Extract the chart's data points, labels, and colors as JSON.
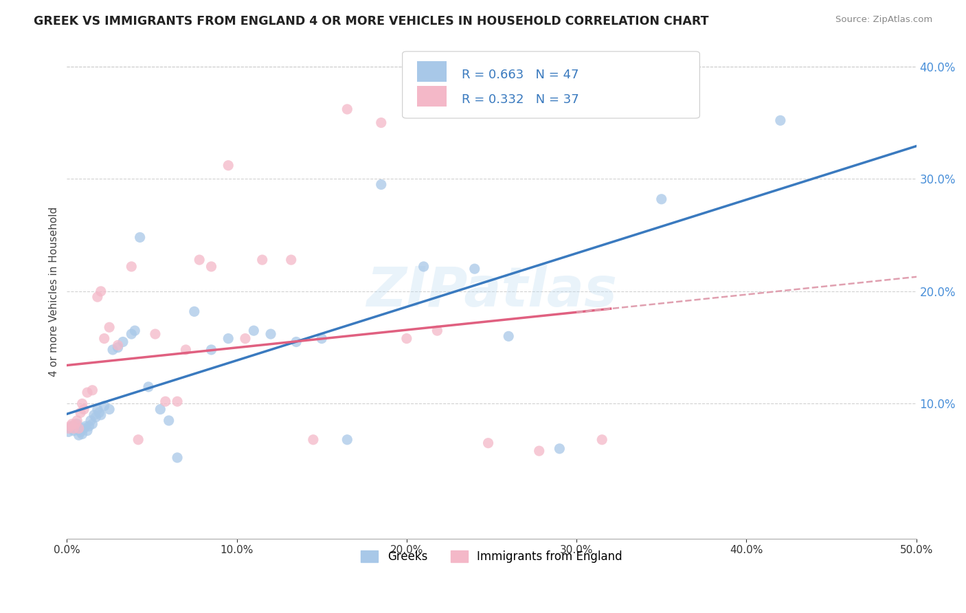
{
  "title": "GREEK VS IMMIGRANTS FROM ENGLAND 4 OR MORE VEHICLES IN HOUSEHOLD CORRELATION CHART",
  "source": "Source: ZipAtlas.com",
  "ylabel": "4 or more Vehicles in Household",
  "xlim": [
    0.0,
    0.5
  ],
  "ylim": [
    -0.02,
    0.42
  ],
  "xtick_vals": [
    0.0,
    0.1,
    0.2,
    0.3,
    0.4,
    0.5
  ],
  "ytick_vals": [
    0.1,
    0.2,
    0.3,
    0.4
  ],
  "blue_R": 0.663,
  "blue_N": 47,
  "pink_R": 0.332,
  "pink_N": 37,
  "blue_color": "#a8c8e8",
  "pink_color": "#f4b8c8",
  "blue_line_color": "#3a7abf",
  "pink_line_color": "#e06080",
  "pink_dash_color": "#e0a0b0",
  "watermark": "ZIPatlas",
  "legend_label_blue": "Greeks",
  "legend_label_pink": "Immigrants from England",
  "blue_x": [
    0.001,
    0.002,
    0.003,
    0.004,
    0.005,
    0.006,
    0.007,
    0.008,
    0.009,
    0.01,
    0.011,
    0.012,
    0.013,
    0.014,
    0.015,
    0.016,
    0.017,
    0.018,
    0.019,
    0.02,
    0.022,
    0.025,
    0.027,
    0.03,
    0.033,
    0.038,
    0.04,
    0.043,
    0.048,
    0.055,
    0.06,
    0.065,
    0.075,
    0.085,
    0.095,
    0.11,
    0.12,
    0.135,
    0.15,
    0.165,
    0.185,
    0.21,
    0.24,
    0.26,
    0.29,
    0.35,
    0.42
  ],
  "blue_y": [
    0.075,
    0.078,
    0.08,
    0.076,
    0.078,
    0.082,
    0.072,
    0.075,
    0.073,
    0.078,
    0.08,
    0.076,
    0.08,
    0.085,
    0.082,
    0.09,
    0.088,
    0.095,
    0.092,
    0.09,
    0.098,
    0.095,
    0.148,
    0.15,
    0.155,
    0.162,
    0.165,
    0.248,
    0.115,
    0.095,
    0.085,
    0.052,
    0.182,
    0.148,
    0.158,
    0.165,
    0.162,
    0.155,
    0.158,
    0.068,
    0.295,
    0.222,
    0.22,
    0.16,
    0.06,
    0.282,
    0.352
  ],
  "pink_x": [
    0.001,
    0.002,
    0.003,
    0.004,
    0.005,
    0.006,
    0.007,
    0.008,
    0.009,
    0.01,
    0.012,
    0.015,
    0.018,
    0.02,
    0.022,
    0.025,
    0.03,
    0.038,
    0.042,
    0.052,
    0.058,
    0.065,
    0.07,
    0.078,
    0.085,
    0.095,
    0.105,
    0.115,
    0.132,
    0.145,
    0.165,
    0.185,
    0.2,
    0.218,
    0.248,
    0.278,
    0.315
  ],
  "pink_y": [
    0.078,
    0.08,
    0.082,
    0.078,
    0.082,
    0.085,
    0.078,
    0.092,
    0.1,
    0.095,
    0.11,
    0.112,
    0.195,
    0.2,
    0.158,
    0.168,
    0.152,
    0.222,
    0.068,
    0.162,
    0.102,
    0.102,
    0.148,
    0.228,
    0.222,
    0.312,
    0.158,
    0.228,
    0.228,
    0.068,
    0.362,
    0.35,
    0.158,
    0.165,
    0.065,
    0.058,
    0.068
  ]
}
